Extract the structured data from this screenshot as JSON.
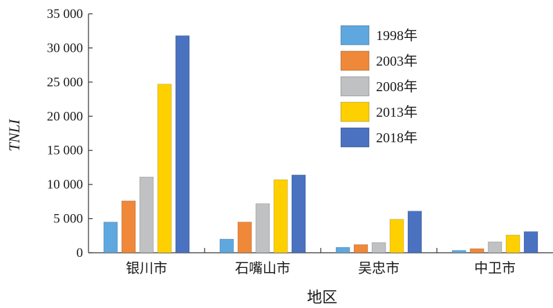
{
  "chart_data": {
    "type": "bar",
    "title": "",
    "xlabel": "地区",
    "ylabel": "TNLI",
    "ylim": [
      0,
      35000
    ],
    "yticks": [
      "0",
      "5 000",
      "10 000",
      "15 000",
      "20 000",
      "25 000",
      "30 000",
      "35 000"
    ],
    "ytick_values": [
      0,
      5000,
      10000,
      15000,
      20000,
      25000,
      30000,
      35000
    ],
    "categories": [
      "银川市",
      "石嘴山市",
      "吴忠市",
      "中卫市"
    ],
    "series": [
      {
        "name": "1998年",
        "color": "#5fa8df",
        "values": [
          4500,
          2000,
          800,
          350
        ]
      },
      {
        "name": "2003年",
        "color": "#f0883a",
        "values": [
          7600,
          4500,
          1200,
          600
        ]
      },
      {
        "name": "2008年",
        "color": "#bfc1c2",
        "values": [
          11100,
          7200,
          1500,
          1600
        ]
      },
      {
        "name": "2013年",
        "color": "#ffd000",
        "values": [
          24700,
          10700,
          4900,
          2600
        ]
      },
      {
        "name": "2018年",
        "color": "#4a72c0",
        "values": [
          31800,
          11400,
          6100,
          3100
        ]
      }
    ],
    "legend_position": "top-right",
    "grid": false
  }
}
